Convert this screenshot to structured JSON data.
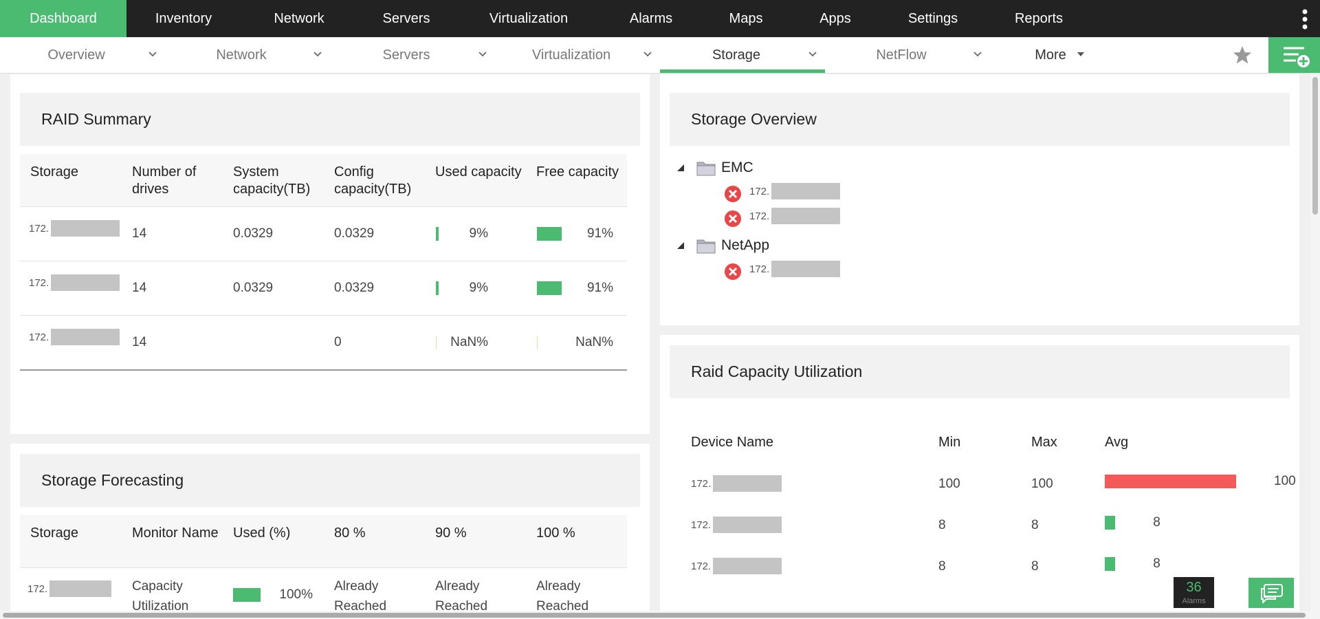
{
  "nav": {
    "tabs": [
      "Dashboard",
      "Inventory",
      "Network",
      "Servers",
      "Virtualization",
      "Alarms",
      "Maps",
      "Apps",
      "Settings",
      "Reports"
    ]
  },
  "subnav": {
    "tabs": [
      "Overview",
      "Network",
      "Servers",
      "Virtualization",
      "Storage",
      "NetFlow",
      "More"
    ]
  },
  "raid_summary": {
    "title": "RAID Summary",
    "headers": [
      "Storage",
      "Number of drives",
      "System capacity(TB)",
      "Config capacity(TB)",
      "Used capacity",
      "Free capacity"
    ],
    "rows": [
      [
        "172.",
        "14",
        "0.0329",
        "0.0329",
        {
          "value": 9,
          "label": "9%"
        },
        {
          "value": 91,
          "label": "91%"
        }
      ],
      [
        "172.",
        "14",
        "0.0329",
        "0.0329",
        {
          "value": 9,
          "label": "9%"
        },
        {
          "value": 91,
          "label": "91%"
        }
      ],
      [
        "172.",
        "14",
        null,
        "0",
        {
          "value": null,
          "label": "NaN%"
        },
        {
          "value": null,
          "label": "NaN%"
        }
      ]
    ]
  },
  "storage_overview": {
    "title": "Storage Overview",
    "nodes": [
      {
        "label": "EMC",
        "children": [
          "172.",
          "172."
        ]
      },
      {
        "label": "NetApp",
        "children": [
          "172."
        ]
      }
    ]
  },
  "storage_forecasting": {
    "title": "Storage Forecasting",
    "headers": [
      "Storage",
      "Monitor Name",
      "Used (%)",
      "80 %",
      "90 %",
      "100 %"
    ],
    "rows": [
      [
        "172.",
        "Capacity Utilization",
        {
          "value": 100,
          "label": "100%"
        },
        "Already Reached",
        "Already Reached",
        "Already Reached"
      ]
    ]
  },
  "raid_capacity": {
    "title": "Raid Capacity Utilization",
    "headers": [
      "Device Name",
      "Min",
      "Max",
      "Avg"
    ],
    "rows": [
      {
        "device": "172.",
        "min": 100,
        "max": 100,
        "avg": 100
      },
      {
        "device": "172.",
        "min": 8,
        "max": 8,
        "avg": 8
      },
      {
        "device": "172.",
        "min": 8,
        "max": 8,
        "avg": 8
      }
    ]
  },
  "alarms": {
    "count": 36,
    "label": "Alarms"
  }
}
